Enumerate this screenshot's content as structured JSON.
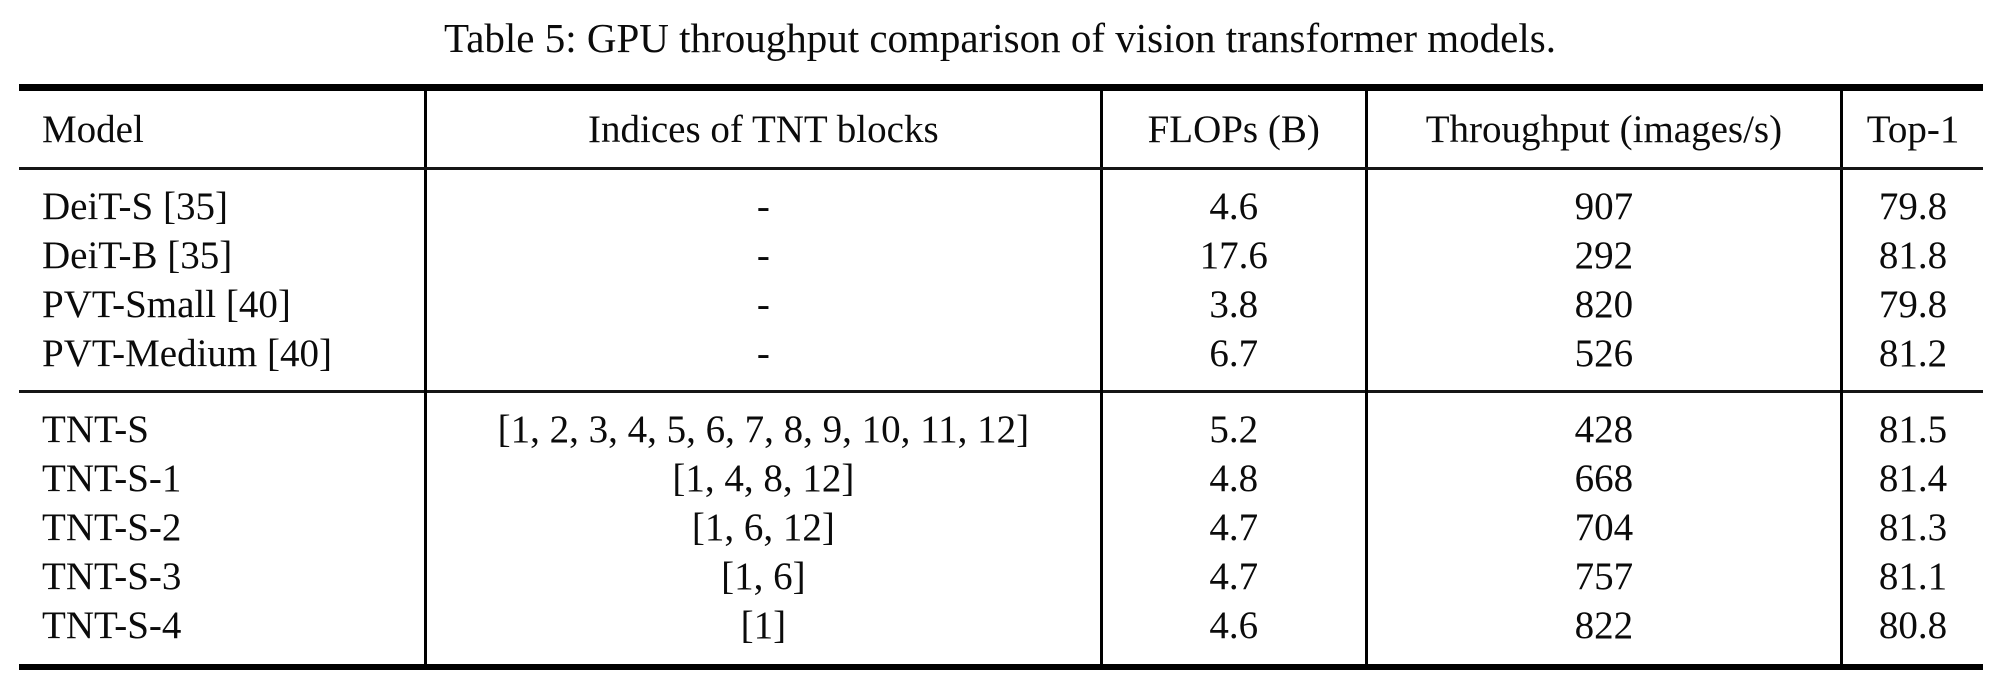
{
  "caption": "Table 5: GPU throughput comparison of vision transformer models.",
  "table": {
    "columns": [
      "Model",
      "Indices of TNT blocks",
      "FLOPs (B)",
      "Throughput (images/s)",
      "Top-1"
    ],
    "groups": [
      {
        "name": "baseline-models",
        "rows": [
          [
            "DeiT-S [35]",
            "-",
            "4.6",
            "907",
            "79.8"
          ],
          [
            "DeiT-B [35]",
            "-",
            "17.6",
            "292",
            "81.8"
          ],
          [
            "PVT-Small [40]",
            "-",
            "3.8",
            "820",
            "79.8"
          ],
          [
            "PVT-Medium [40]",
            "-",
            "6.7",
            "526",
            "81.2"
          ]
        ]
      },
      {
        "name": "tnt-models",
        "rows": [
          [
            "TNT-S",
            "[1, 2, 3, 4, 5, 6, 7, 8, 9, 10, 11, 12]",
            "5.2",
            "428",
            "81.5"
          ],
          [
            "TNT-S-1",
            "[1, 4, 8, 12]",
            "4.8",
            "668",
            "81.4"
          ],
          [
            "TNT-S-2",
            "[1, 6, 12]",
            "4.7",
            "704",
            "81.3"
          ],
          [
            "TNT-S-3",
            "[1, 6]",
            "4.7",
            "757",
            "81.1"
          ],
          [
            "TNT-S-4",
            "[1]",
            "4.6",
            "822",
            "80.8"
          ]
        ]
      }
    ]
  },
  "colors": {
    "text": "#0b0b0b",
    "background": "#ffffff",
    "rule": "#000000"
  }
}
